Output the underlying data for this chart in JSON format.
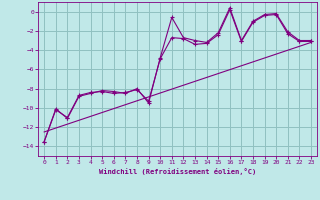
{
  "xlabel": "Windchill (Refroidissement éolien,°C)",
  "bg_color": "#c0e8e8",
  "grid_color": "#90c0c0",
  "line_color": "#800080",
  "xlim": [
    -0.5,
    23.5
  ],
  "ylim": [
    -15,
    1
  ],
  "yticks": [
    0,
    -2,
    -4,
    -6,
    -8,
    -10,
    -12,
    -14
  ],
  "xticks": [
    0,
    1,
    2,
    3,
    4,
    5,
    6,
    7,
    8,
    9,
    10,
    11,
    12,
    13,
    14,
    15,
    16,
    17,
    18,
    19,
    20,
    21,
    22,
    23
  ],
  "data_line1": {
    "x": [
      0,
      1,
      2,
      3,
      4,
      5,
      6,
      7,
      8,
      9,
      10,
      11,
      12,
      13,
      14,
      15,
      16,
      17,
      18,
      19,
      20,
      21,
      22,
      23
    ],
    "y": [
      -13.5,
      -10.1,
      -11.1,
      -8.8,
      -8.5,
      -8.2,
      -8.3,
      -8.5,
      -8.0,
      -9.5,
      -4.8,
      -0.6,
      -2.7,
      -3.0,
      -3.2,
      -2.2,
      0.4,
      -3.0,
      -1.0,
      -0.3,
      -0.2,
      -2.1,
      -3.0,
      -3.0
    ]
  },
  "data_line2": {
    "x": [
      0,
      1,
      2,
      3,
      4,
      5,
      6,
      7,
      8,
      9,
      10,
      11,
      12,
      13,
      14,
      15,
      16,
      17,
      18,
      19,
      20,
      21,
      22,
      23
    ],
    "y": [
      -13.5,
      -10.2,
      -11.0,
      -8.7,
      -8.4,
      -8.3,
      -8.5,
      -8.4,
      -8.1,
      -9.3,
      -4.9,
      -2.7,
      -2.8,
      -3.4,
      -3.3,
      -2.4,
      0.2,
      -3.1,
      -1.1,
      -0.4,
      -0.3,
      -2.3,
      -3.1,
      -3.1
    ]
  },
  "data_regression": {
    "x": [
      0,
      23
    ],
    "y": [
      -12.5,
      -3.2
    ]
  }
}
